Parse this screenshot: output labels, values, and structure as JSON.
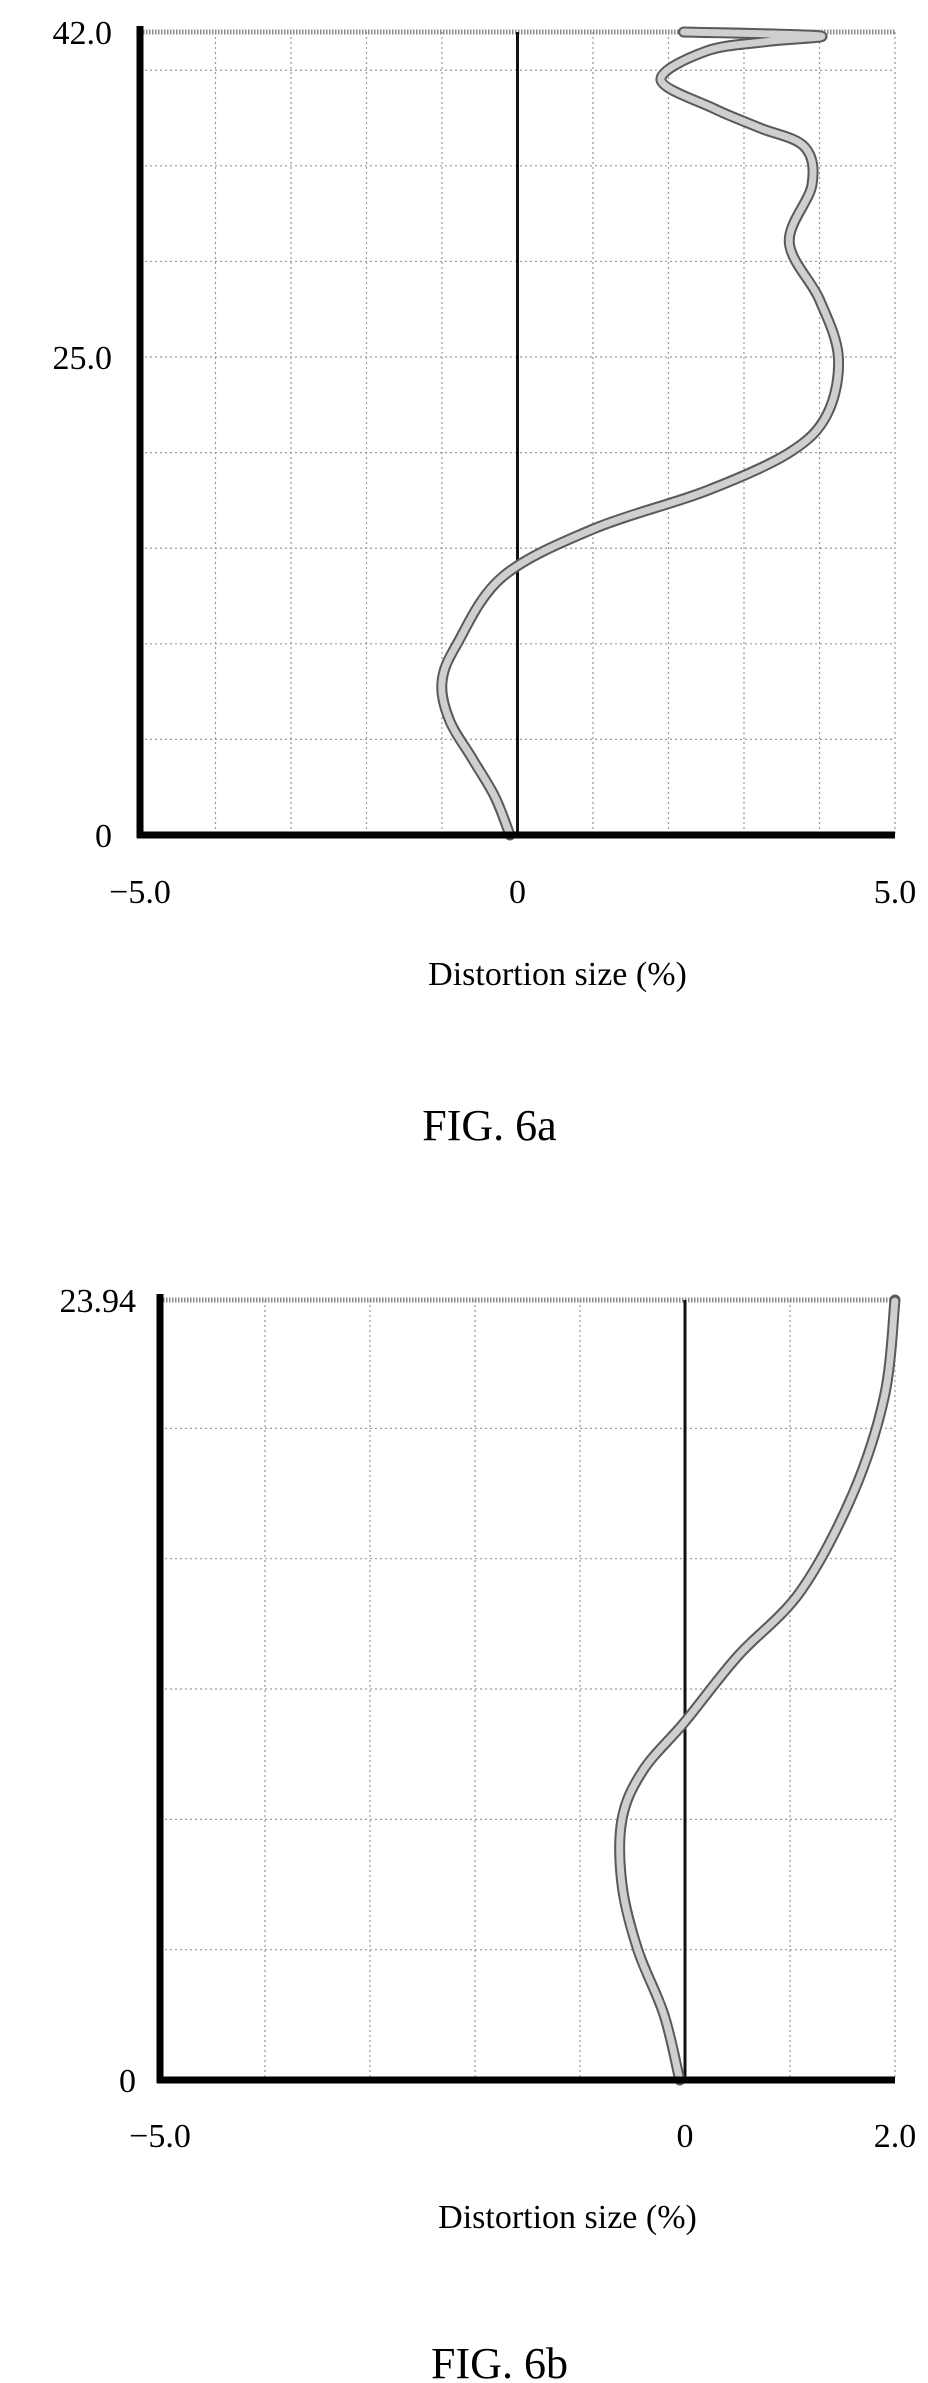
{
  "chart_data": [
    {
      "type": "line",
      "caption": "FIG. 6a",
      "xlabel": "Distortion size (%)",
      "ylabel": "",
      "xlim": [
        -5.0,
        5.0
      ],
      "ylim": [
        0,
        42.0
      ],
      "x_ticks": [
        "−5.0",
        "0",
        "5.0"
      ],
      "x_tick_values": [
        -5.0,
        0,
        5.0
      ],
      "y_ticks": [
        "0",
        "25.0",
        "42.0"
      ],
      "y_tick_values": [
        0,
        25.0,
        42.0
      ],
      "grid": true,
      "x_grid_step": 1.0,
      "y_grid_lines": [
        5,
        10,
        15,
        20,
        25,
        30,
        35,
        40
      ],
      "series": [
        {
          "x": [
            -0.1,
            -0.3,
            -0.6,
            -0.9,
            -1.0,
            -0.8,
            -0.2,
            1.0,
            2.5,
            3.6,
            4.1,
            4.25,
            4.0,
            3.6,
            3.9,
            3.8,
            3.2,
            2.6,
            1.9,
            2.5,
            3.3,
            4.0,
            2.2
          ],
          "y": [
            0,
            2,
            4,
            6,
            8,
            10,
            13.5,
            16,
            18,
            20,
            22,
            25,
            28,
            31,
            34,
            36,
            37,
            38,
            39.5,
            41,
            41.5,
            41.8,
            42.0
          ]
        }
      ]
    },
    {
      "type": "line",
      "caption": "FIG. 6b",
      "xlabel": "Distortion size (%)",
      "ylabel": "",
      "xlim": [
        -5.0,
        2.0
      ],
      "ylim": [
        0,
        23.94
      ],
      "x_ticks": [
        "−5.0",
        "0",
        "2.0"
      ],
      "x_tick_values": [
        -5.0,
        0,
        2.0
      ],
      "y_ticks": [
        "0",
        "23.94"
      ],
      "y_tick_values": [
        0,
        23.94
      ],
      "grid": true,
      "x_grid_step": 1.0,
      "y_grid_lines": [
        4,
        8,
        12,
        16,
        20
      ],
      "series": [
        {
          "x": [
            -0.05,
            -0.2,
            -0.45,
            -0.6,
            -0.6,
            -0.4,
            0.0,
            0.5,
            1.1,
            1.6,
            1.9,
            2.0
          ],
          "y": [
            0,
            2,
            4,
            6,
            8,
            9.5,
            11,
            13,
            15,
            18,
            21,
            23.94
          ]
        }
      ]
    }
  ]
}
